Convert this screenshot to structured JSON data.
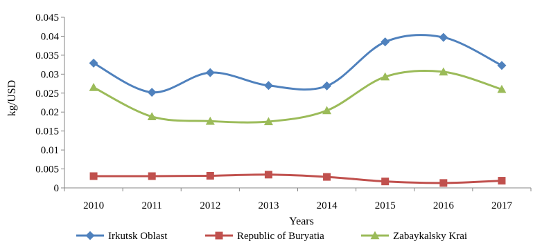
{
  "chart_data": {
    "type": "line",
    "title": "",
    "xlabel": "Years",
    "ylabel": "kg/USD",
    "categories": [
      "2010",
      "2011",
      "2012",
      "2013",
      "2014",
      "2015",
      "2016",
      "2017"
    ],
    "yticks": [
      "0",
      "0.005",
      "0.01",
      "0.015",
      "0.02",
      "0.025",
      "0.03",
      "0.035",
      "0.04",
      "0.045"
    ],
    "ylim": [
      0,
      0.045
    ],
    "grid": false,
    "smooth": true,
    "legend_position": "bottom",
    "series": [
      {
        "name": "Irkutsk Oblast",
        "color": "#4f81bd",
        "marker": "diamond",
        "values": [
          0.0329,
          0.0252,
          0.0304,
          0.027,
          0.0269,
          0.0385,
          0.0397,
          0.0323
        ]
      },
      {
        "name": "Republic of Buryatia",
        "color": "#c0504d",
        "marker": "square",
        "values": [
          0.0031,
          0.0031,
          0.0032,
          0.0035,
          0.0029,
          0.0017,
          0.0013,
          0.0019
        ]
      },
      {
        "name": "Zabaykalsky Krai",
        "color": "#9bbb59",
        "marker": "triangle",
        "values": [
          0.0265,
          0.0188,
          0.0176,
          0.0175,
          0.0204,
          0.0293,
          0.0306,
          0.026
        ]
      }
    ]
  }
}
